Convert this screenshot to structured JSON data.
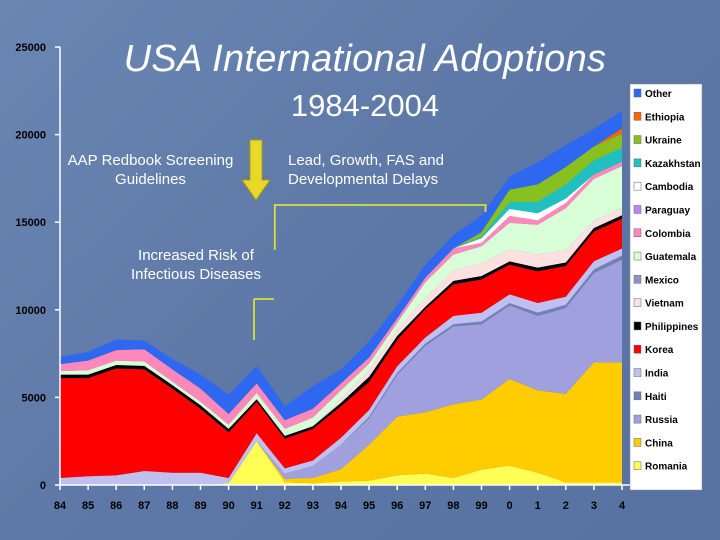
{
  "slide": {
    "title": "USA International Adoptions",
    "subtitle": "1984-2004"
  },
  "annotations": {
    "aap": "AAP Redbook Screening Guidelines",
    "lead": "Lead, Growth, FAS and Developmental Delays",
    "risk": "Increased Risk of Infectious Diseases"
  },
  "arrow_color": "#e8d82a",
  "bracket_color": "#d8df3a",
  "chart_data": {
    "type": "area",
    "stacked": true,
    "x": [
      "84",
      "85",
      "86",
      "87",
      "88",
      "89",
      "90",
      "91",
      "92",
      "93",
      "94",
      "95",
      "96",
      "97",
      "98",
      "99",
      "0",
      "1",
      "2",
      "3",
      "4"
    ],
    "yticks": [
      0,
      5000,
      10000,
      15000,
      20000,
      25000
    ],
    "ylim": [
      0,
      25000
    ],
    "legend_position": "right",
    "series": [
      {
        "name": "Romania",
        "color": "#ffff55",
        "values": [
          0,
          0,
          0,
          0,
          0,
          0,
          100,
          2500,
          150,
          100,
          200,
          250,
          550,
          650,
          400,
          880,
          1100,
          700,
          150,
          150,
          150
        ]
      },
      {
        "name": "China",
        "color": "#ffcc00",
        "values": [
          0,
          0,
          0,
          0,
          0,
          0,
          0,
          0,
          200,
          300,
          700,
          2050,
          3350,
          3500,
          4200,
          4000,
          4950,
          4700,
          5050,
          6850,
          6850
        ]
      },
      {
        "name": "Russia",
        "color": "#a0a0de",
        "values": [
          0,
          0,
          0,
          0,
          0,
          0,
          0,
          0,
          300,
          700,
          1400,
          1500,
          2400,
          3800,
          4450,
          4300,
          4200,
          4250,
          4900,
          5100,
          5850
        ]
      },
      {
        "name": "Haiti",
        "color": "#7080b8",
        "values": [
          0,
          0,
          0,
          0,
          0,
          0,
          0,
          0,
          0,
          0,
          0,
          100,
          100,
          120,
          120,
          150,
          130,
          190,
          190,
          200,
          250
        ]
      },
      {
        "name": "India",
        "color": "#c0c0f0",
        "values": [
          400,
          500,
          550,
          800,
          700,
          700,
          300,
          450,
          300,
          300,
          400,
          380,
          380,
          350,
          480,
          500,
          500,
          550,
          460,
          470,
          400
        ]
      },
      {
        "name": "Korea",
        "color": "#ff0000",
        "values": [
          5700,
          5600,
          6100,
          5800,
          4800,
          3650,
          2600,
          1800,
          1700,
          1800,
          1800,
          1600,
          1500,
          1600,
          1800,
          1900,
          1700,
          1800,
          1750,
          1700,
          1700
        ]
      },
      {
        "name": "Philippines",
        "color": "#000000",
        "values": [
          200,
          200,
          200,
          200,
          200,
          200,
          200,
          150,
          150,
          150,
          200,
          300,
          230,
          150,
          200,
          200,
          180,
          220,
          200,
          200,
          200
        ]
      },
      {
        "name": "Vietnam",
        "color": "#ffe0e0",
        "values": [
          0,
          0,
          0,
          0,
          0,
          0,
          0,
          0,
          0,
          0,
          200,
          350,
          350,
          500,
          600,
          700,
          700,
          750,
          700,
          400,
          400
        ]
      },
      {
        "name": "Mexico",
        "color": "#9090c8",
        "values": [
          0,
          0,
          0,
          0,
          0,
          0,
          0,
          0,
          0,
          0,
          0,
          0,
          0,
          0,
          0,
          0,
          0,
          0,
          0,
          0,
          0
        ]
      },
      {
        "name": "Guatemala",
        "color": "#d8ffd8",
        "values": [
          200,
          250,
          250,
          250,
          200,
          200,
          250,
          350,
          400,
          500,
          500,
          400,
          400,
          900,
          900,
          1000,
          1500,
          1700,
          2400,
          2400,
          2400
        ]
      },
      {
        "name": "Colombia",
        "color": "#ff88bb",
        "values": [
          400,
          550,
          600,
          700,
          700,
          750,
          600,
          550,
          500,
          500,
          400,
          350,
          250,
          250,
          350,
          200,
          400,
          250,
          300,
          250,
          250
        ]
      },
      {
        "name": "Paraguay",
        "color": "#c080ff",
        "values": [
          0,
          0,
          0,
          0,
          0,
          0,
          0,
          0,
          0,
          0,
          0,
          0,
          0,
          0,
          0,
          0,
          0,
          0,
          0,
          0,
          0
        ]
      },
      {
        "name": "Cambodia",
        "color": "#ffffff",
        "values": [
          0,
          0,
          0,
          0,
          0,
          0,
          0,
          0,
          0,
          0,
          0,
          0,
          0,
          0,
          0,
          250,
          400,
          400,
          250,
          0,
          0
        ]
      },
      {
        "name": "Kazakhstan",
        "color": "#20c0c0",
        "values": [
          0,
          0,
          0,
          0,
          0,
          0,
          0,
          0,
          0,
          0,
          0,
          0,
          0,
          0,
          0,
          100,
          400,
          650,
          800,
          800,
          800
        ]
      },
      {
        "name": "Ukraine",
        "color": "#88c020",
        "values": [
          0,
          0,
          0,
          0,
          0,
          0,
          0,
          0,
          0,
          0,
          0,
          0,
          0,
          0,
          0,
          250,
          700,
          1000,
          1000,
          800,
          800
        ]
      },
      {
        "name": "Ethiopia",
        "color": "#ff6600",
        "values": [
          0,
          0,
          0,
          0,
          0,
          0,
          0,
          0,
          0,
          0,
          0,
          0,
          0,
          0,
          0,
          0,
          0,
          0,
          0,
          0,
          300
        ]
      },
      {
        "name": "Other",
        "color": "#2f68f0",
        "values": [
          400,
          500,
          600,
          500,
          600,
          800,
          1100,
          1000,
          800,
          1300,
          800,
          900,
          750,
          750,
          750,
          950,
          750,
          1250,
          1250,
          1000,
          1000
        ]
      }
    ]
  }
}
